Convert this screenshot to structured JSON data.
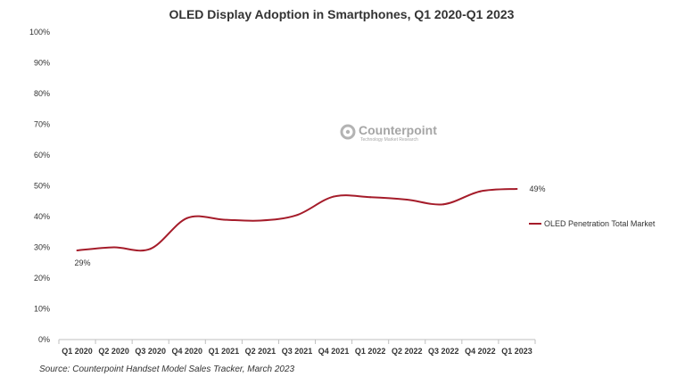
{
  "chart_data": {
    "type": "line",
    "title": "OLED Display Adoption in Smartphones, Q1 2020-Q1 2023",
    "categories": [
      "Q1 2020",
      "Q2 2020",
      "Q3 2020",
      "Q4 2020",
      "Q1 2021",
      "Q2 2021",
      "Q3 2021",
      "Q4 2021",
      "Q1 2022",
      "Q2 2022",
      "Q3 2022",
      "Q4 2022",
      "Q1 2023"
    ],
    "series": [
      {
        "name": "OLED Penetration Total Market",
        "values": [
          29,
          30,
          29.5,
          39.5,
          39,
          38.7,
          40.5,
          46.5,
          46.3,
          45.5,
          44,
          48.2,
          49
        ],
        "color": "#a51c2a"
      }
    ],
    "yticks": [
      "0%",
      "10%",
      "20%",
      "30%",
      "40%",
      "50%",
      "60%",
      "70%",
      "80%",
      "90%",
      "100%"
    ],
    "ylim": [
      0,
      100
    ],
    "data_labels": [
      {
        "index": 0,
        "text": "29%"
      },
      {
        "index": 12,
        "text": "49%"
      }
    ],
    "legend_position": "right",
    "grid": false,
    "source": "Source: Counterpoint Handset Model Sales Tracker, March 2023",
    "watermark": {
      "name": "Counterpoint",
      "tagline": "Technology Market Research"
    }
  }
}
